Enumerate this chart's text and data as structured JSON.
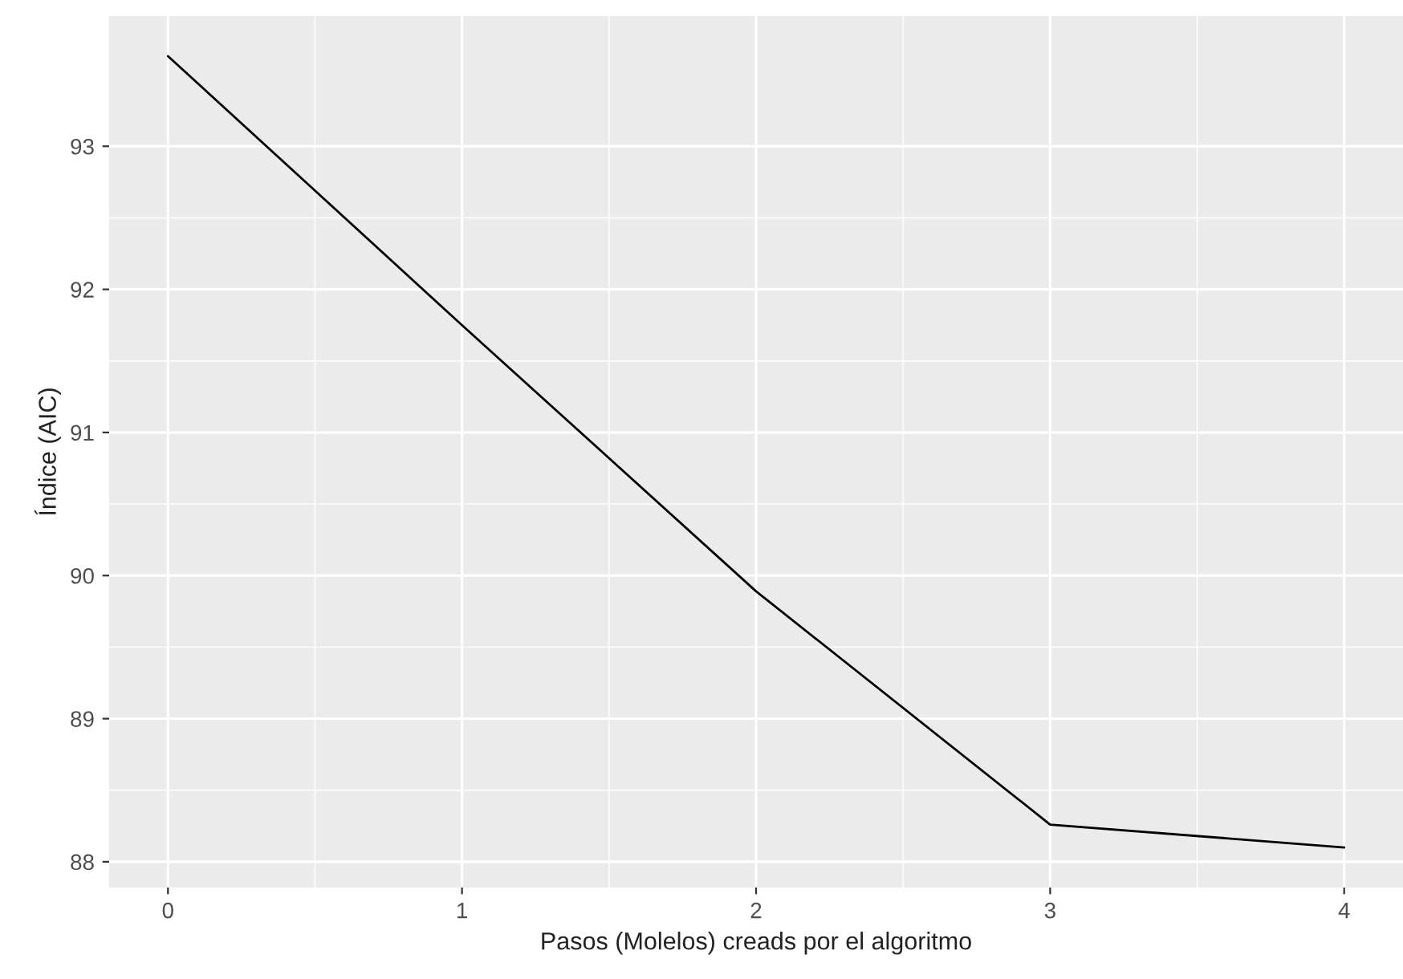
{
  "chart_data": {
    "type": "line",
    "xlabel": "Pasos (Molelos) creads por el algoritmo",
    "ylabel": "Índice (AIC)",
    "x": [
      0,
      1,
      2,
      3,
      4
    ],
    "series": [
      {
        "color": "#000000",
        "values": [
          93.63,
          91.75,
          89.89,
          88.26,
          88.1
        ]
      }
    ],
    "xlim": [
      -0.2,
      4.2
    ],
    "xticks": [
      0,
      1,
      2,
      3,
      4
    ],
    "ylim": [
      87.82,
      93.91
    ],
    "yticks": [
      88,
      89,
      90,
      91,
      92,
      93
    ],
    "grid": true
  }
}
